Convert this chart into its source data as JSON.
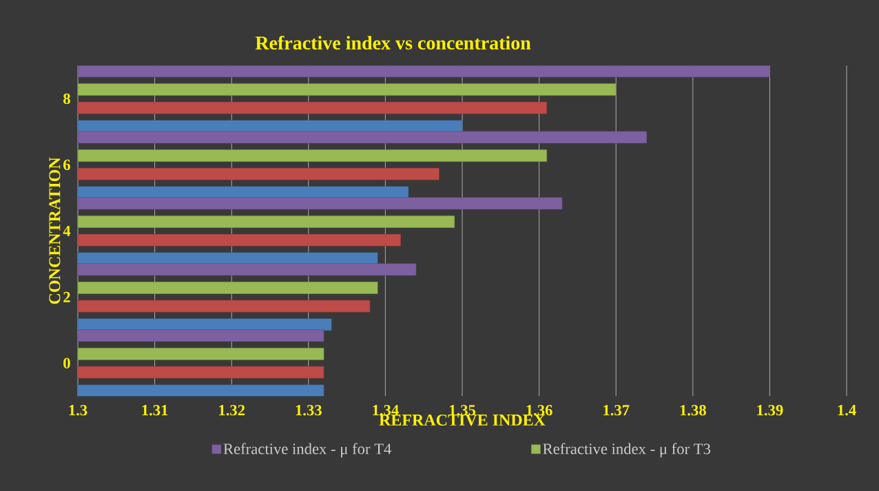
{
  "chart_data": {
    "type": "bar",
    "orientation": "horizontal",
    "title": "Refractive index vs concentration",
    "xlabel": "REFRACTIVE INDEX",
    "ylabel": "CONCENTRATION",
    "categories": [
      "8",
      "6",
      "4",
      "2",
      "0"
    ],
    "series": [
      {
        "color": "#4a7ebb",
        "values": [
          1.35,
          1.343,
          1.339,
          1.333,
          1.332
        ]
      },
      {
        "color": "#be4b48",
        "values": [
          1.361,
          1.347,
          1.342,
          1.338,
          1.332
        ]
      },
      {
        "name": "Refractive index - μ for T3",
        "color": "#98b954",
        "values": [
          1.37,
          1.361,
          1.349,
          1.339,
          1.332
        ]
      },
      {
        "name": "Refractive index - μ for T4",
        "color": "#7d60a0",
        "values": [
          1.39,
          1.374,
          1.363,
          1.344,
          1.332
        ]
      }
    ],
    "xlim": [
      1.3,
      1.4
    ],
    "xticks": [
      1.3,
      1.31,
      1.32,
      1.33,
      1.34,
      1.35,
      1.36,
      1.37,
      1.38,
      1.39,
      1.4
    ],
    "grid": "x",
    "legend": "bottom"
  }
}
